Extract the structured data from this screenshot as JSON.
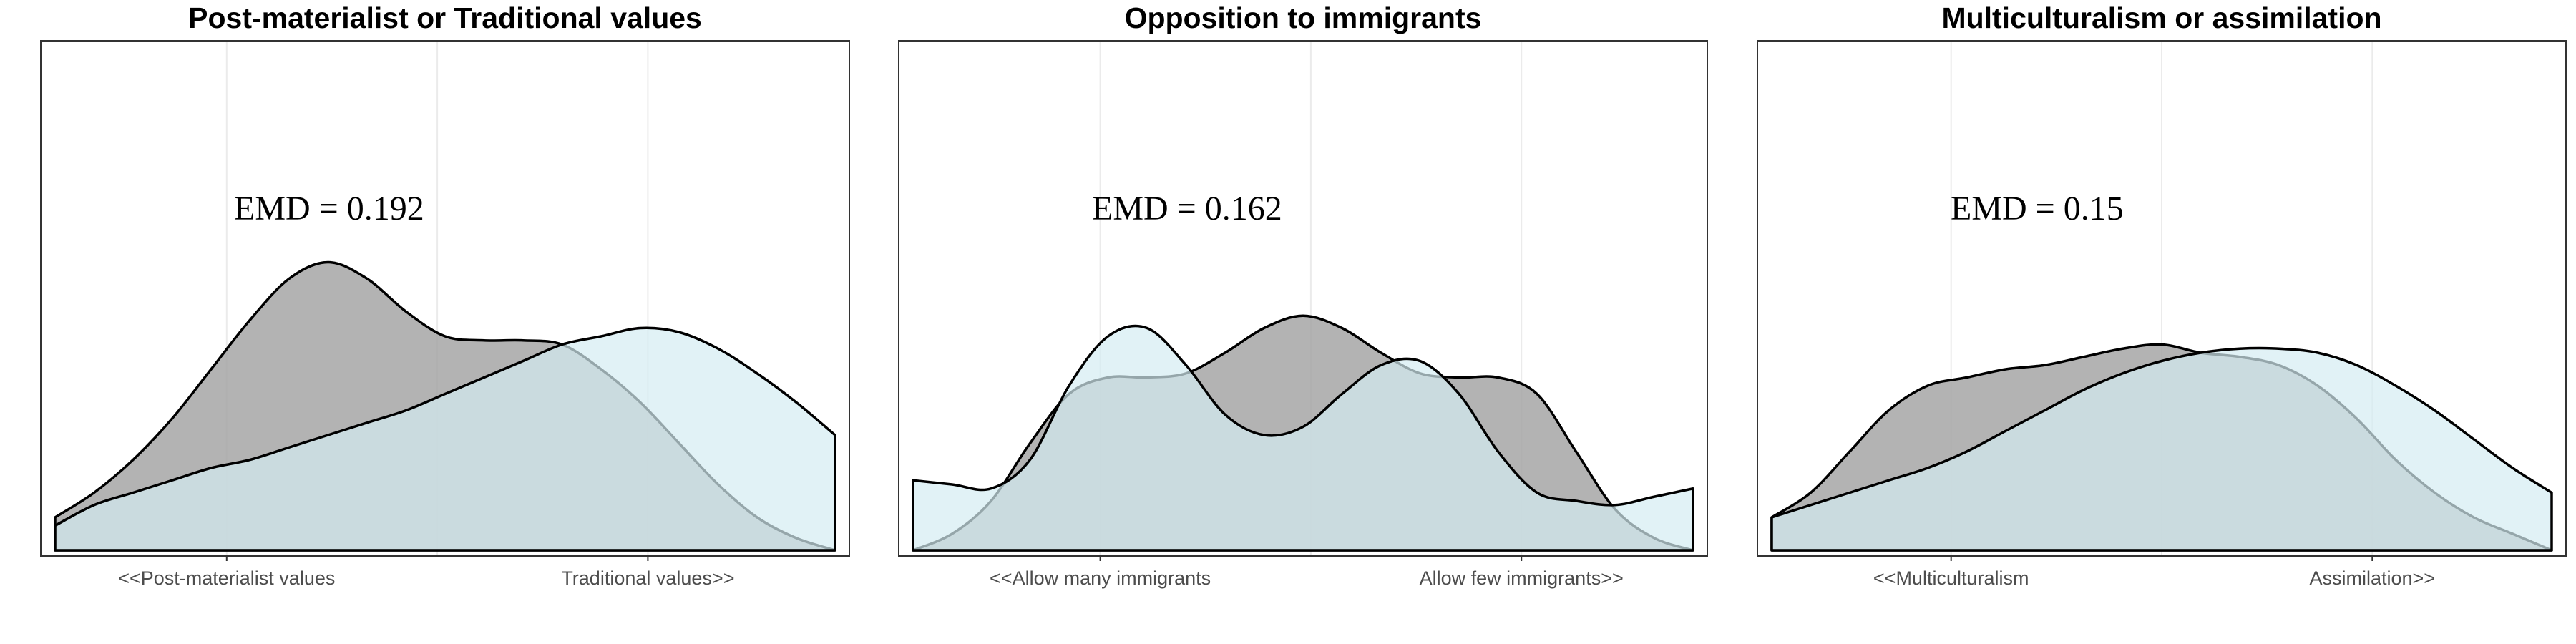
{
  "colors": {
    "series_a_fill": "#a6a6a6",
    "series_b_fill": "#d4ecf2",
    "outline": "#000000",
    "panel_border": "#333333",
    "grid": "#ebebeb",
    "tick_label": "#4d4d4d"
  },
  "chart_data": [
    {
      "type": "area",
      "title": "Post-materialist or Traditional values",
      "annotation": "EMD = 0.192",
      "xlim": [
        0,
        1
      ],
      "ylim": [
        0,
        1
      ],
      "grid": "vertical",
      "x_ticks": [
        {
          "x": 0.22,
          "label": "<<Post-materialist values"
        },
        {
          "x": 0.76,
          "label": "Traditional values>>"
        }
      ],
      "series": [
        {
          "fill": "#a6a6a6",
          "opacity": 0.85,
          "x": [
            0,
            0.05,
            0.1,
            0.15,
            0.2,
            0.25,
            0.3,
            0.35,
            0.4,
            0.45,
            0.5,
            0.55,
            0.6,
            0.65,
            0.7,
            0.75,
            0.8,
            0.85,
            0.9,
            0.95,
            1.0
          ],
          "y": [
            0.04,
            0.07,
            0.11,
            0.16,
            0.22,
            0.28,
            0.33,
            0.35,
            0.33,
            0.29,
            0.26,
            0.255,
            0.255,
            0.25,
            0.22,
            0.18,
            0.13,
            0.08,
            0.04,
            0.015,
            0.0
          ]
        },
        {
          "fill": "#d4ecf2",
          "opacity": 0.7,
          "x": [
            0,
            0.05,
            0.1,
            0.15,
            0.2,
            0.25,
            0.3,
            0.35,
            0.4,
            0.45,
            0.5,
            0.55,
            0.6,
            0.65,
            0.7,
            0.75,
            0.8,
            0.85,
            0.9,
            0.95,
            1.0
          ],
          "y": [
            0.03,
            0.055,
            0.07,
            0.085,
            0.1,
            0.11,
            0.125,
            0.14,
            0.155,
            0.17,
            0.19,
            0.21,
            0.23,
            0.25,
            0.26,
            0.27,
            0.265,
            0.245,
            0.215,
            0.18,
            0.14
          ]
        }
      ]
    },
    {
      "type": "area",
      "title": "Opposition to immigrants",
      "annotation": "EMD = 0.162",
      "xlim": [
        0,
        1
      ],
      "ylim": [
        0,
        1
      ],
      "grid": "vertical",
      "x_ticks": [
        {
          "x": 0.24,
          "label": "<<Allow many immigrants"
        },
        {
          "x": 0.78,
          "label": "Allow few immigrants>>"
        }
      ],
      "series": [
        {
          "fill": "#a6a6a6",
          "opacity": 0.85,
          "x": [
            0,
            0.05,
            0.1,
            0.15,
            0.2,
            0.25,
            0.3,
            0.35,
            0.4,
            0.45,
            0.5,
            0.55,
            0.6,
            0.65,
            0.7,
            0.75,
            0.8,
            0.85,
            0.9,
            0.95,
            1.0
          ],
          "y": [
            0.0,
            0.02,
            0.06,
            0.13,
            0.19,
            0.21,
            0.21,
            0.215,
            0.24,
            0.27,
            0.285,
            0.27,
            0.24,
            0.215,
            0.21,
            0.21,
            0.19,
            0.12,
            0.05,
            0.015,
            0.0
          ]
        },
        {
          "fill": "#d4ecf2",
          "opacity": 0.7,
          "x": [
            0,
            0.05,
            0.1,
            0.15,
            0.2,
            0.25,
            0.3,
            0.35,
            0.4,
            0.45,
            0.5,
            0.55,
            0.6,
            0.65,
            0.7,
            0.75,
            0.8,
            0.85,
            0.9,
            0.95,
            1.0
          ],
          "y": [
            0.085,
            0.08,
            0.075,
            0.11,
            0.2,
            0.26,
            0.27,
            0.225,
            0.165,
            0.14,
            0.15,
            0.19,
            0.225,
            0.23,
            0.19,
            0.12,
            0.07,
            0.06,
            0.055,
            0.065,
            0.075
          ]
        }
      ]
    },
    {
      "type": "area",
      "title": "Multiculturalism  or assimilation",
      "annotation": "EMD = 0.15",
      "xlim": [
        0,
        1
      ],
      "ylim": [
        0,
        1
      ],
      "grid": "vertical",
      "x_ticks": [
        {
          "x": 0.23,
          "label": "<<Multiculturalism"
        },
        {
          "x": 0.77,
          "label": "Assimilation>>"
        }
      ],
      "series": [
        {
          "fill": "#a6a6a6",
          "opacity": 0.85,
          "x": [
            0,
            0.05,
            0.1,
            0.15,
            0.2,
            0.25,
            0.3,
            0.35,
            0.4,
            0.45,
            0.5,
            0.55,
            0.6,
            0.65,
            0.7,
            0.75,
            0.8,
            0.85,
            0.9,
            0.95,
            1.0
          ],
          "y": [
            0.04,
            0.07,
            0.12,
            0.17,
            0.2,
            0.21,
            0.22,
            0.225,
            0.235,
            0.245,
            0.25,
            0.24,
            0.235,
            0.225,
            0.2,
            0.16,
            0.11,
            0.07,
            0.04,
            0.02,
            0.0
          ]
        },
        {
          "fill": "#d4ecf2",
          "opacity": 0.7,
          "x": [
            0,
            0.05,
            0.1,
            0.15,
            0.2,
            0.25,
            0.3,
            0.35,
            0.4,
            0.45,
            0.5,
            0.55,
            0.6,
            0.65,
            0.7,
            0.75,
            0.8,
            0.85,
            0.9,
            0.95,
            1.0
          ],
          "y": [
            0.04,
            0.055,
            0.07,
            0.085,
            0.1,
            0.12,
            0.145,
            0.17,
            0.195,
            0.215,
            0.23,
            0.24,
            0.245,
            0.245,
            0.24,
            0.225,
            0.2,
            0.17,
            0.135,
            0.1,
            0.07
          ]
        }
      ]
    }
  ]
}
